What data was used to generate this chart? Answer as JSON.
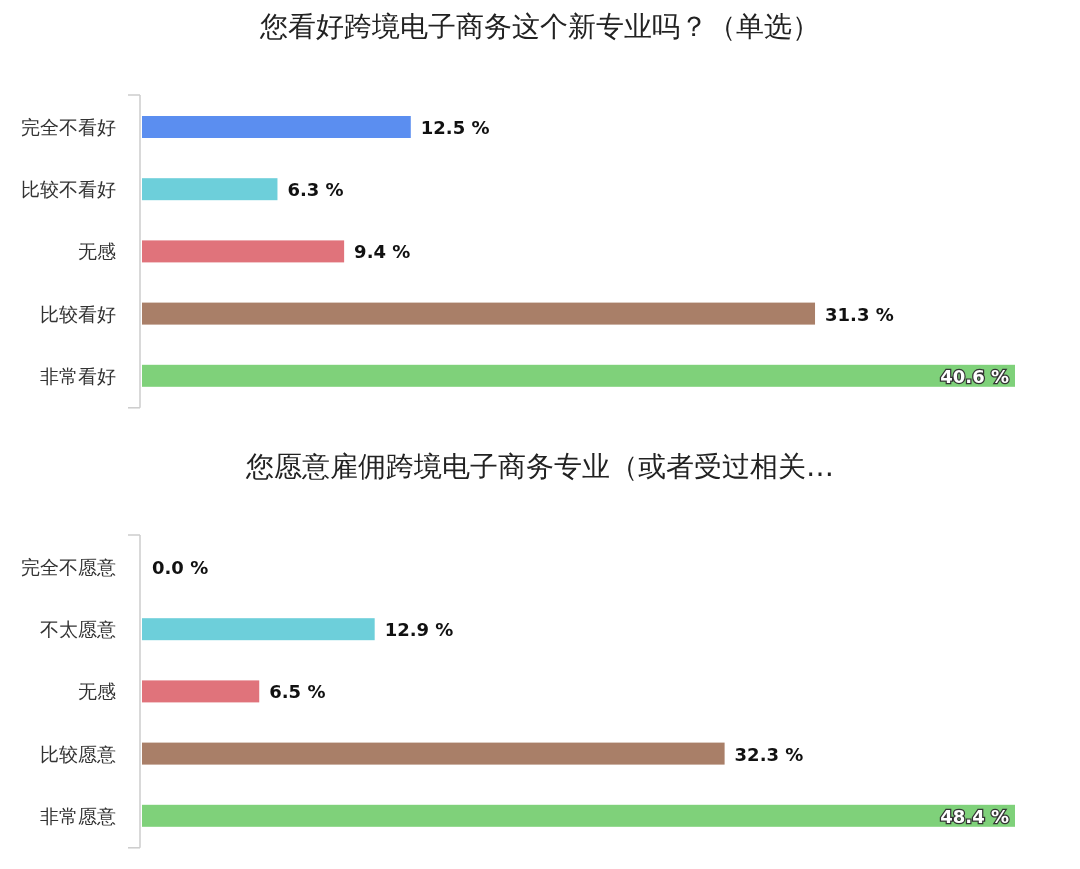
{
  "chart_data": [
    {
      "type": "bar",
      "orientation": "horizontal",
      "title": "您看好跨境电子商务这个新专业吗？（单选）",
      "categories": [
        "完全不看好",
        "比较不看好",
        "无感",
        "比较看好",
        "非常看好"
      ],
      "values": [
        12.5,
        6.3,
        9.4,
        31.3,
        40.6
      ],
      "value_labels": [
        "12.5 %",
        "6.3 %",
        "9.4 %",
        "31.3 %",
        "40.6 %"
      ],
      "colors": [
        "#5b8ef0",
        "#6dcfda",
        "#e0737b",
        "#a97f68",
        "#7fd17a"
      ]
    },
    {
      "type": "bar",
      "orientation": "horizontal",
      "title": "您愿意雇佣跨境电子商务专业（或者受过相关…",
      "categories": [
        "完全不愿意",
        "不太愿意",
        "无感",
        "比较愿意",
        "非常愿意"
      ],
      "values": [
        0.0,
        12.9,
        6.5,
        32.3,
        48.4
      ],
      "value_labels": [
        "0.0 %",
        "12.9 %",
        "6.5 %",
        "32.3 %",
        "48.4 %"
      ],
      "colors": [
        "#5b8ef0",
        "#6dcfda",
        "#e0737b",
        "#a97f68",
        "#7fd17a"
      ]
    }
  ]
}
